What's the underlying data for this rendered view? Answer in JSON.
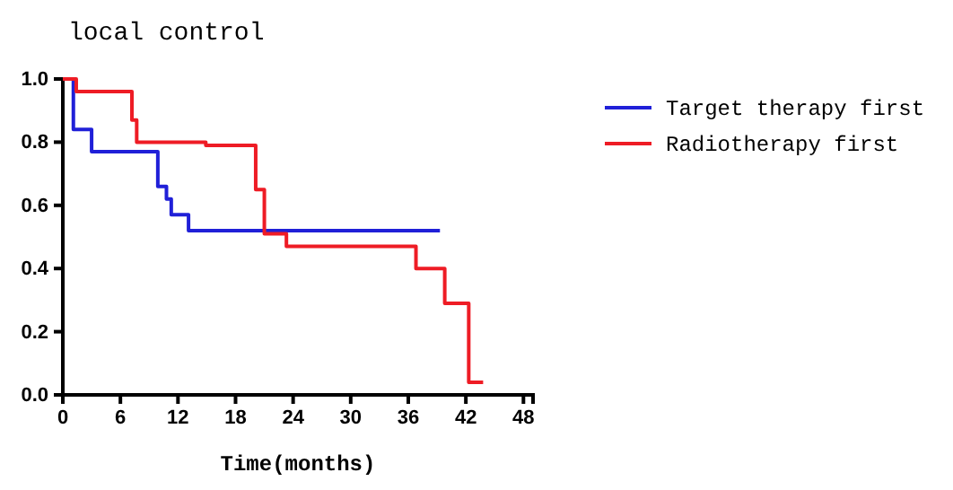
{
  "chart_data": {
    "type": "step",
    "title": "local control",
    "xlabel": "Time(months)",
    "xlim": [
      0,
      49
    ],
    "xticks": [
      0,
      6,
      12,
      18,
      24,
      30,
      36,
      42,
      48
    ],
    "ylim": [
      0,
      1
    ],
    "yticks": [
      {
        "value": 0,
        "label": "0.0"
      },
      {
        "value": 0.2,
        "label": "0.2"
      },
      {
        "value": 0.4,
        "label": "0.4"
      },
      {
        "value": 0.6,
        "label": "0.6"
      },
      {
        "value": 0.8,
        "label": "0.8"
      },
      {
        "value": 1,
        "label": "1.0"
      }
    ],
    "legend": "top right",
    "grid": false,
    "line_style": "solid",
    "series": [
      {
        "name": "Target therapy first",
        "color": "#2020d8",
        "x": [
          0,
          1.1,
          3,
          9.9,
          10.8,
          11.3,
          13.1,
          39.3
        ],
        "values": [
          1,
          0.84,
          0.77,
          0.66,
          0.62,
          0.57,
          0.52,
          0.52
        ]
      },
      {
        "name": "Radiotherapy first",
        "color": "#ee1c25",
        "x": [
          0,
          1.4,
          7.2,
          7.7,
          14.9,
          20.1,
          21,
          23.3,
          36.8,
          39.8,
          42.3,
          43.8
        ],
        "values": [
          1,
          0.96,
          0.87,
          0.8,
          0.79,
          0.65,
          0.51,
          0.47,
          0.4,
          0.29,
          0.04,
          0.04
        ]
      }
    ]
  }
}
